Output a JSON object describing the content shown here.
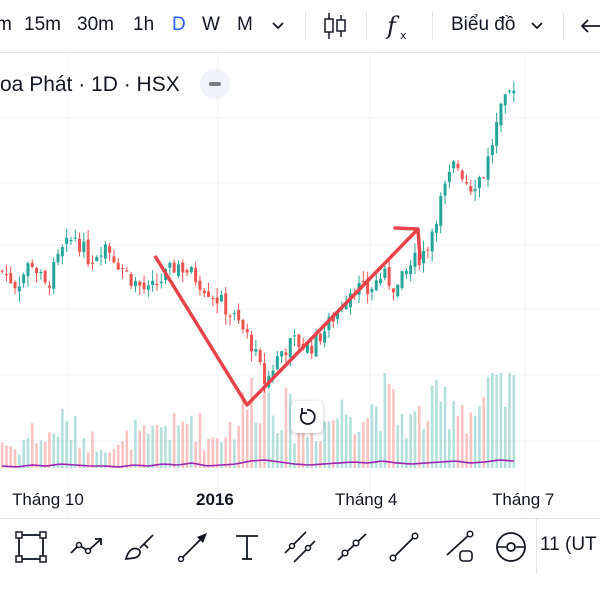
{
  "toolbar": {
    "intervals": [
      {
        "label": "m",
        "name": "interval-1m"
      },
      {
        "label": "15m",
        "name": "interval-15m"
      },
      {
        "label": "30m",
        "name": "interval-30m"
      },
      {
        "label": "1h",
        "name": "interval-1h"
      },
      {
        "label": "D",
        "name": "interval-1d"
      },
      {
        "label": "W",
        "name": "interval-1w"
      },
      {
        "label": "M",
        "name": "interval-1mo"
      }
    ],
    "active_interval": "D",
    "chart_type_label": "Biểu đồ",
    "icons": [
      "chevron-down-icon",
      "candles-icon",
      "indicators-icon",
      "undo-icon"
    ],
    "accent_color": "#2962ff"
  },
  "legend": {
    "symbol_text": "oa Phát · 1D · HSX"
  },
  "x_axis": {
    "labels": [
      "Tháng 10",
      "2016",
      "Tháng 4",
      "Tháng 7"
    ]
  },
  "drawing_toolbar": {
    "tools": [
      {
        "name": "rectangle-tool-icon"
      },
      {
        "name": "path-tool-icon"
      },
      {
        "name": "brush-tool-icon"
      },
      {
        "name": "arrow-tool-icon"
      },
      {
        "name": "text-tool-icon"
      },
      {
        "name": "parallel-channel-tool-icon"
      },
      {
        "name": "ray-tool-icon"
      },
      {
        "name": "trend-line-tool-icon"
      },
      {
        "name": "price-range-tool-icon"
      },
      {
        "name": "eye-tool-icon"
      }
    ],
    "timezone_label": "11 (UT"
  },
  "colors": {
    "up": "#26a69a",
    "down": "#ef5350",
    "ma_line": "#9c27b0",
    "annotation": "#e8434b"
  },
  "chart_data": {
    "type": "candlestick",
    "x_labels": [
      "Tháng 10",
      "2016",
      "Tháng 4",
      "Tháng 7"
    ],
    "close_path": [
      3.6,
      3.2,
      3.9,
      3.1,
      4.1,
      4.6,
      3.9,
      4.4,
      3.8,
      3.3,
      3.0,
      3.4,
      3.8,
      3.5,
      3.1,
      2.7,
      2.2,
      1.6,
      0.4,
      1.3,
      1.6,
      1.4,
      1.9,
      2.5,
      3.2,
      3.0,
      3.5,
      3.1,
      3.8,
      4.2,
      5.6,
      6.7,
      6.0,
      6.4,
      8.0,
      8.9
    ],
    "volume_path": [
      3,
      2,
      4,
      3,
      5,
      4,
      3,
      3,
      2,
      4,
      3,
      5,
      4,
      6,
      3,
      4,
      5,
      8,
      9,
      7,
      5,
      4,
      5,
      6,
      7,
      6,
      8,
      6,
      5,
      6,
      7,
      8,
      6,
      7,
      9,
      8
    ],
    "annotations": [
      {
        "type": "polyline-arrow",
        "description": "V-shape: down to trough then up with arrow"
      }
    ]
  }
}
